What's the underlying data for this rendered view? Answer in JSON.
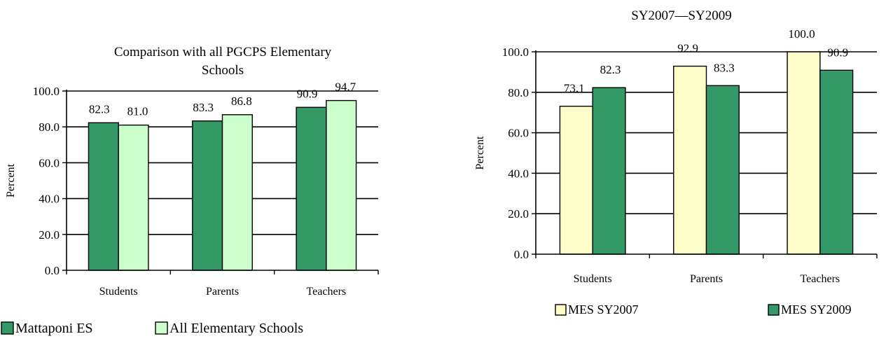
{
  "chart_data": [
    {
      "type": "bar",
      "title_lines": [
        "Comparison with all PGCPS Elementary",
        "Schools"
      ],
      "ylabel": "Percent",
      "xlabel": "",
      "categories": [
        "Students",
        "Parents",
        "Teachers"
      ],
      "ylim": [
        0,
        100
      ],
      "yticks": [
        "0.0",
        "20.0",
        "40.0",
        "60.0",
        "80.0",
        "100.0"
      ],
      "grid": true,
      "legend_position": "bottom",
      "series": [
        {
          "name": "Mattaponi ES",
          "values": [
            82.3,
            83.3,
            90.9
          ],
          "labels": [
            "82.3",
            "83.3",
            "90.9"
          ],
          "color": "#339966"
        },
        {
          "name": "All Elementary Schools",
          "values": [
            81.0,
            86.8,
            94.7
          ],
          "labels": [
            "81.0",
            "86.8",
            "94.7"
          ],
          "color": "#CCFFCC"
        }
      ]
    },
    {
      "type": "bar",
      "title_lines": [
        "SY2007—SY2009"
      ],
      "ylabel": "Percent",
      "xlabel": "",
      "categories": [
        "Students",
        "Parents",
        "Teachers"
      ],
      "ylim": [
        0,
        100
      ],
      "yticks": [
        "0.0",
        "20.0",
        "40.0",
        "60.0",
        "80.0",
        "100.0"
      ],
      "grid": true,
      "legend_position": "bottom",
      "series": [
        {
          "name": "MES SY2007",
          "values": [
            73.1,
            92.9,
            100.0
          ],
          "labels": [
            "73.1",
            "92.9",
            "100.0"
          ],
          "color": "#FFFFCC"
        },
        {
          "name": "MES SY2009",
          "values": [
            82.3,
            83.3,
            90.9
          ],
          "labels": [
            "82.3",
            "83.3",
            "90.9"
          ],
          "color": "#339966"
        }
      ]
    }
  ]
}
